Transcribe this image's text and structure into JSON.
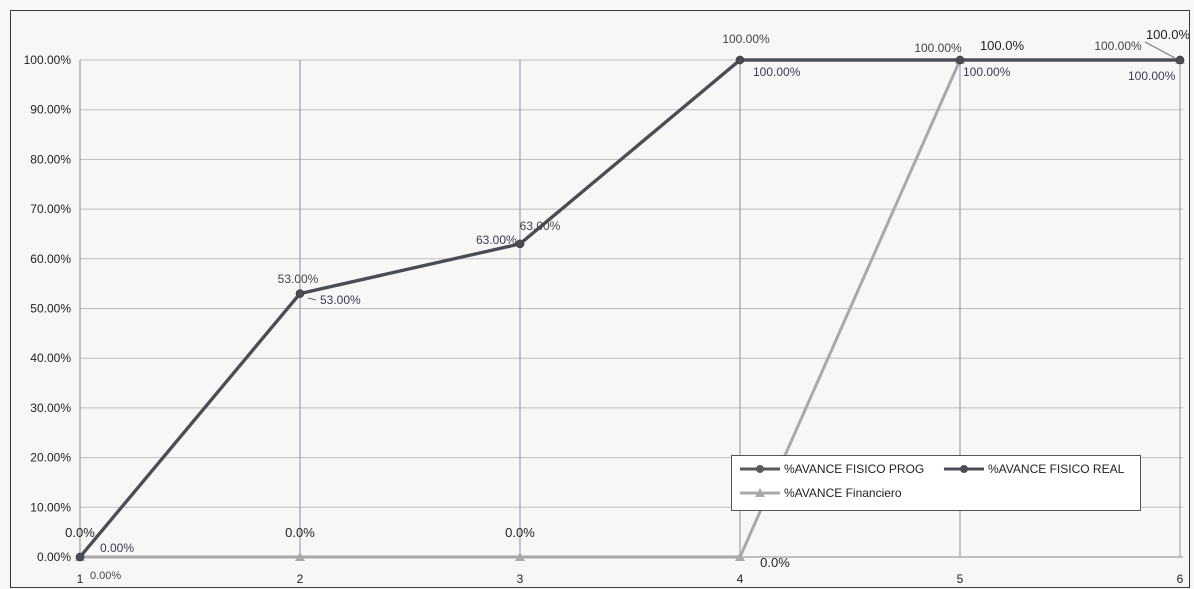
{
  "chart_data": {
    "type": "line",
    "categories": [
      "1",
      "2",
      "3",
      "4",
      "5",
      "6"
    ],
    "y_tick_labels": [
      "0.00%",
      "10.00%",
      "20.00%",
      "30.00%",
      "40.00%",
      "50.00%",
      "60.00%",
      "70.00%",
      "80.00%",
      "90.00%",
      "100.00%"
    ],
    "ylim": [
      0,
      1
    ],
    "grid": true,
    "legend_position": "bottom-right",
    "series": [
      {
        "name": "%AVANCE FISICO PROG",
        "marker": "circle",
        "color": "#5a5a5a",
        "values": [
          0,
          0.53,
          0.63,
          1.0,
          1.0,
          1.0
        ],
        "data_labels": [
          "0.00%",
          "53.00%",
          "63.00%",
          "100.00%",
          "100.00%",
          "100.00%"
        ]
      },
      {
        "name": "%AVANCE FISICO REAL",
        "marker": "circle",
        "color": "#4a4d57",
        "values": [
          0,
          0.53,
          0.63,
          1.0,
          1.0,
          1.0
        ],
        "data_labels": [
          "0.00%",
          "53.00%",
          "63.00%",
          "100.00%",
          "100.00%",
          "100.00%"
        ]
      },
      {
        "name": "%AVANCE Financiero",
        "marker": "triangle",
        "color": "#a9a9a9",
        "values": [
          0,
          0,
          0,
          0,
          1.0,
          1.0
        ],
        "data_labels": [
          "0.0%",
          "0.0%",
          "0.0%",
          "0.0%",
          "100.0%",
          "100.0%"
        ]
      }
    ]
  }
}
